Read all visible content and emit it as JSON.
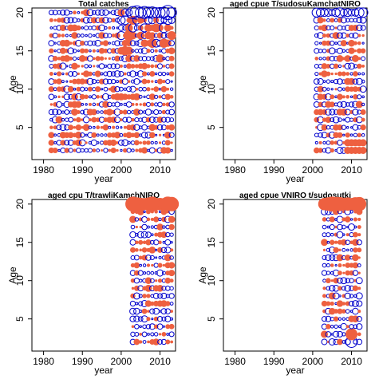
{
  "chart_data": [
    {
      "type": "scatter",
      "title": "Total catches",
      "xlabel": "year",
      "ylabel": "Age",
      "xlim": [
        1977,
        2014
      ],
      "ylim": [
        0.8,
        20.6
      ],
      "xticks": [
        1980,
        1990,
        2000,
        2010
      ],
      "yticks": [
        5,
        10,
        15,
        20
      ],
      "x_range": [
        1982,
        2013
      ],
      "ages": [
        2,
        3,
        4,
        5,
        6,
        7,
        8,
        9,
        10,
        11,
        12,
        13,
        14,
        15,
        16,
        17,
        18,
        19,
        20
      ],
      "bubble_style": "residual bubbles (open blue = positive, filled red = negative)"
    },
    {
      "type": "scatter",
      "title": "aged    cpue    T/sudosuKamchatNIRO",
      "xlabel": "year",
      "ylabel": "Age",
      "xlim": [
        1977,
        2014
      ],
      "ylim": [
        0.8,
        20.6
      ],
      "xticks": [
        1980,
        1990,
        2000,
        2010
      ],
      "yticks": [
        5,
        10,
        15,
        20
      ],
      "x_range": [
        2001,
        2013
      ],
      "ages": [
        2,
        3,
        4,
        5,
        6,
        7,
        8,
        9,
        10,
        11,
        12,
        13,
        14,
        15,
        16,
        17,
        18,
        19,
        20
      ]
    },
    {
      "type": "scatter",
      "title": "aged    cpu    T/trawliKamchNIRO",
      "xlabel": "year",
      "ylabel": "Age",
      "xlim": [
        1977,
        2014
      ],
      "ylim": [
        0.8,
        20.6
      ],
      "xticks": [
        1980,
        1990,
        2000,
        2010
      ],
      "yticks": [
        5,
        10,
        15,
        20
      ],
      "x_range": [
        2003,
        2013
      ],
      "ages": [
        2,
        3,
        4,
        5,
        6,
        7,
        8,
        9,
        10,
        11,
        12,
        13,
        14,
        15,
        16,
        17,
        18,
        19,
        20
      ]
    },
    {
      "type": "scatter",
      "title": "aged    cpue    VNIRO    t/sudosutki",
      "xlabel": "year",
      "ylabel": "Age",
      "xlim": [
        1977,
        2014
      ],
      "ylim": [
        0.8,
        20.6
      ],
      "xticks": [
        1980,
        1990,
        2000,
        2010
      ],
      "yticks": [
        5,
        10,
        15,
        20
      ],
      "x_range": [
        2003,
        2012
      ],
      "ages": [
        2,
        3,
        4,
        5,
        6,
        7,
        8,
        9,
        10,
        11,
        12,
        13,
        14,
        15,
        16,
        17,
        18,
        19,
        20
      ]
    }
  ],
  "colors": {
    "positive": "#0000cc",
    "negative": "#ee6040",
    "axis": "#000000"
  }
}
